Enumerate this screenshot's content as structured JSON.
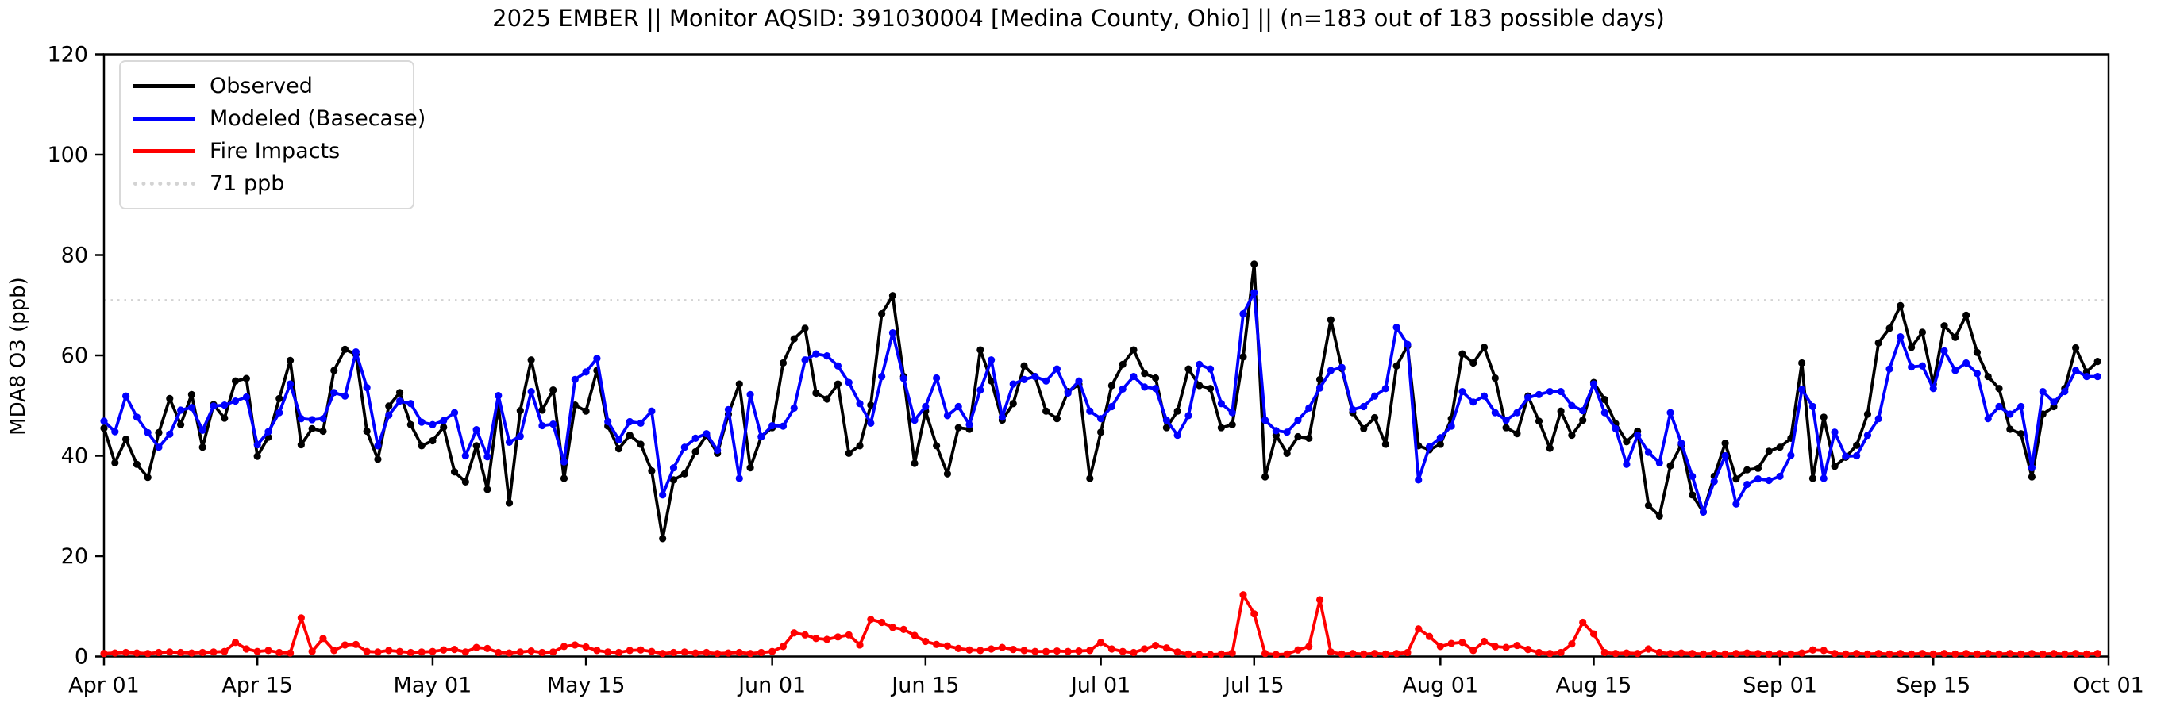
{
  "chart_data": {
    "type": "line",
    "title": "2025 EMBER || Monitor AQSID: 391030004 [Medina County, Ohio] || (n=183 out of 183 possible days)",
    "xlabel": "",
    "ylabel": "MDA8 O3 (ppb)",
    "ylim": [
      0,
      120
    ],
    "y_ticks": [
      0,
      20,
      40,
      60,
      80,
      100,
      120
    ],
    "x_tick_labels": [
      "Apr 01",
      "Apr 15",
      "May 01",
      "May 15",
      "Jun 01",
      "Jun 15",
      "Jul 01",
      "Jul 15",
      "Aug 01",
      "Aug 15",
      "Sep 01",
      "Sep 15",
      "Oct 01"
    ],
    "x_tick_day_index": [
      0,
      14,
      30,
      44,
      61,
      75,
      91,
      105,
      122,
      136,
      153,
      167,
      183
    ],
    "n_days": 183,
    "date_range": [
      "Apr 01",
      "Sep 30"
    ],
    "grid": false,
    "legend_position": "upper left",
    "threshold": {
      "label": "71 ppb",
      "value": 71,
      "color": "#d3d3d3",
      "style": "dotted"
    },
    "series": [
      {
        "name": "Observed",
        "color": "#000000",
        "marker": "circle",
        "values": [
          45.5,
          38.6,
          43.3,
          38.3,
          35.7,
          44.6,
          51.4,
          46.2,
          52.2,
          41.7,
          50.2,
          47.5,
          54.9,
          55.4,
          39.9,
          43.7,
          51.4,
          59.0,
          42.2,
          45.4,
          44.9,
          57.0,
          61.2,
          60.2,
          44.9,
          39.3,
          49.9,
          52.6,
          46.2,
          42.0,
          43.0,
          45.7,
          36.8,
          34.8,
          42.0,
          33.3,
          50.0,
          30.6,
          49.0,
          59.1,
          49.1,
          53.1,
          35.5,
          50.1,
          48.9,
          57.0,
          45.9,
          41.4,
          44.1,
          42.3,
          37.0,
          23.5,
          35.2,
          36.4,
          40.8,
          44.1,
          40.5,
          48.3,
          54.3,
          37.6,
          43.8,
          45.6,
          58.5,
          63.3,
          65.4,
          52.5,
          51.3,
          54.3,
          40.5,
          42.0,
          50.1,
          68.3,
          71.9,
          55.8,
          38.5,
          48.9,
          42.0,
          36.4,
          45.6,
          45.3,
          61.1,
          54.9,
          47.1,
          50.4,
          57.9,
          55.8,
          48.9,
          47.4,
          52.8,
          54.2,
          35.5,
          44.7,
          54.0,
          58.2,
          61.1,
          56.4,
          55.5,
          45.6,
          48.9,
          57.3,
          54.0,
          53.4,
          45.6,
          46.2,
          59.7,
          78.2,
          35.8,
          44.1,
          40.5,
          43.8,
          43.5,
          55.2,
          67.1,
          57.4,
          48.6,
          45.4,
          47.6,
          42.3,
          57.9,
          61.9,
          42.0,
          41.2,
          42.3,
          47.4,
          60.3,
          58.5,
          61.6,
          55.5,
          45.6,
          44.4,
          51.9,
          46.9,
          41.5,
          48.9,
          44.1,
          47.1,
          54.6,
          51.2,
          46.4,
          42.8,
          44.9,
          30.1,
          28.0,
          38.0,
          42.2,
          32.2,
          28.8,
          35.9,
          42.5,
          35.4,
          37.2,
          37.5,
          40.9,
          41.7,
          43.5,
          58.5,
          35.5,
          47.7,
          37.9,
          39.7,
          42.1,
          48.3,
          62.5,
          65.4,
          69.9,
          61.6,
          64.6,
          54.3,
          65.9,
          63.6,
          68.0,
          60.6,
          55.8,
          53.4,
          45.3,
          44.4,
          35.8,
          48.3,
          49.8,
          53.4,
          61.5,
          56.7,
          58.8
        ]
      },
      {
        "name": "Modeled (Basecase)",
        "color": "#0000ff",
        "marker": "circle",
        "values": [
          46.9,
          44.8,
          51.9,
          47.7,
          44.6,
          41.7,
          44.3,
          49.1,
          49.6,
          45.1,
          49.9,
          50.1,
          50.9,
          51.7,
          42.2,
          44.8,
          48.6,
          54.3,
          47.4,
          47.2,
          47.4,
          52.6,
          51.9,
          60.7,
          53.6,
          42.0,
          48.1,
          50.9,
          50.4,
          46.7,
          46.2,
          47.0,
          48.6,
          40.0,
          45.2,
          39.8,
          52.0,
          42.7,
          43.9,
          52.8,
          46.0,
          46.3,
          38.8,
          55.2,
          56.7,
          59.4,
          46.8,
          43.2,
          46.8,
          46.5,
          48.9,
          32.2,
          37.6,
          41.7,
          43.5,
          44.4,
          41.1,
          49.2,
          35.5,
          52.2,
          43.8,
          46.0,
          45.9,
          49.5,
          59.1,
          60.3,
          59.9,
          57.9,
          54.6,
          50.4,
          46.5,
          55.8,
          64.5,
          55.4,
          47.1,
          49.8,
          55.5,
          48.0,
          49.8,
          46.2,
          53.1,
          59.1,
          47.7,
          54.3,
          55.2,
          55.8,
          54.9,
          57.3,
          52.5,
          54.9,
          48.9,
          47.4,
          49.8,
          53.3,
          55.8,
          53.7,
          53.4,
          47.1,
          44.1,
          48.0,
          58.2,
          57.3,
          50.4,
          48.6,
          68.3,
          72.5,
          47.1,
          45.0,
          44.7,
          47.1,
          49.5,
          53.5,
          57.0,
          57.6,
          49.2,
          49.8,
          51.9,
          53.4,
          65.6,
          62.2,
          35.2,
          41.8,
          43.6,
          45.9,
          52.8,
          50.7,
          51.9,
          48.6,
          47.1,
          48.6,
          51.6,
          52.2,
          52.8,
          52.8,
          50.0,
          49.0,
          54.3,
          48.6,
          45.4,
          38.3,
          44.1,
          40.7,
          38.6,
          48.6,
          42.5,
          35.9,
          28.8,
          34.9,
          40.0,
          30.4,
          34.3,
          35.4,
          35.1,
          35.9,
          40.1,
          53.2,
          49.8,
          35.5,
          44.7,
          39.9,
          40.0,
          44.1,
          47.4,
          57.3,
          63.7,
          57.7,
          57.9,
          53.4,
          60.9,
          57.0,
          58.5,
          56.4,
          47.4,
          49.8,
          48.3,
          49.8,
          37.6,
          52.8,
          50.7,
          52.8,
          57.0,
          55.8,
          55.8
        ]
      },
      {
        "name": "Fire Impacts",
        "color": "#ff0000",
        "marker": "circle",
        "values": [
          0.6,
          0.7,
          0.8,
          0.7,
          0.6,
          0.8,
          0.9,
          0.8,
          0.7,
          0.8,
          0.9,
          1.0,
          2.8,
          1.5,
          1.0,
          1.2,
          0.8,
          0.7,
          7.7,
          1.0,
          3.6,
          1.2,
          2.3,
          2.4,
          1.0,
          0.9,
          1.2,
          1.0,
          0.8,
          0.9,
          1.0,
          1.3,
          1.4,
          0.9,
          1.8,
          1.6,
          0.8,
          0.7,
          0.9,
          1.1,
          0.8,
          0.9,
          2.0,
          2.3,
          1.9,
          1.2,
          0.9,
          0.8,
          1.2,
          1.3,
          1.0,
          0.6,
          0.8,
          0.9,
          0.7,
          0.8,
          0.6,
          0.7,
          0.8,
          0.6,
          0.8,
          1.0,
          2.0,
          4.7,
          4.3,
          3.6,
          3.4,
          3.9,
          4.3,
          2.3,
          7.4,
          6.8,
          5.8,
          5.4,
          4.2,
          3.0,
          2.4,
          2.1,
          1.6,
          1.3,
          1.2,
          1.5,
          1.8,
          1.4,
          1.2,
          1.0,
          1.0,
          1.1,
          1.0,
          1.1,
          1.2,
          2.8,
          1.5,
          1.0,
          0.8,
          1.5,
          2.2,
          1.7,
          0.9,
          0.5,
          0.4,
          0.4,
          0.5,
          0.7,
          12.3,
          8.5,
          0.6,
          0.4,
          0.5,
          1.3,
          2.0,
          11.3,
          0.9,
          0.5,
          0.6,
          0.5,
          0.6,
          0.5,
          0.6,
          0.8,
          5.5,
          4.0,
          2.0,
          2.6,
          2.8,
          1.2,
          3.0,
          2.0,
          1.8,
          2.2,
          1.4,
          0.8,
          0.6,
          0.8,
          2.5,
          6.8,
          4.5,
          0.8,
          0.6,
          0.7,
          0.6,
          1.5,
          0.8,
          0.6,
          0.7,
          0.6,
          0.5,
          0.6,
          0.5,
          0.6,
          0.7,
          0.6,
          0.5,
          0.6,
          0.5,
          0.7,
          1.3,
          1.2,
          0.6,
          0.5,
          0.6,
          0.5,
          0.6,
          0.5,
          0.6,
          0.5,
          0.6,
          0.5,
          0.6,
          0.5,
          0.6,
          0.5,
          0.6,
          0.5,
          0.6,
          0.5,
          0.6,
          0.5,
          0.6,
          0.5,
          0.6,
          0.5,
          0.6
        ]
      }
    ],
    "legend_entries": [
      "Observed",
      "Modeled (Basecase)",
      "Fire Impacts",
      "71 ppb"
    ]
  }
}
